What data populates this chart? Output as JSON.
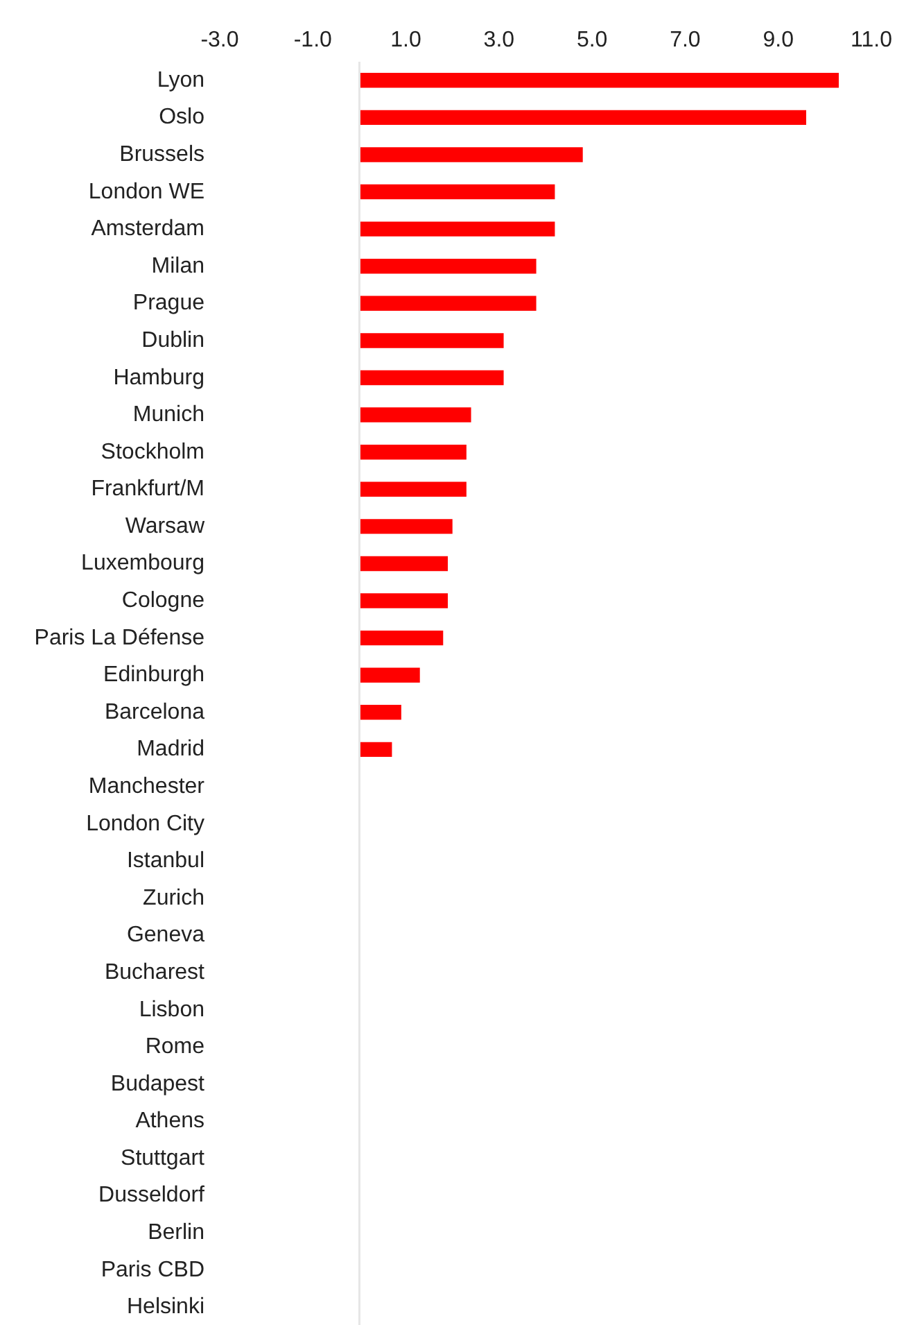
{
  "chart_data": {
    "type": "bar",
    "orientation": "horizontal",
    "categories": [
      "Lyon",
      "Oslo",
      "Brussels",
      "London WE",
      "Amsterdam",
      "Milan",
      "Prague",
      "Dublin",
      "Hamburg",
      "Munich",
      "Stockholm",
      "Frankfurt/M",
      "Warsaw",
      "Luxembourg",
      "Cologne",
      "Paris La Défense",
      "Edinburgh",
      "Barcelona",
      "Madrid",
      "Manchester",
      "London City",
      "Istanbul",
      "Zurich",
      "Geneva",
      "Bucharest",
      "Lisbon",
      "Rome",
      "Budapest",
      "Athens",
      "Stuttgart",
      "Dusseldorf",
      "Berlin",
      "Paris CBD",
      "Helsinki"
    ],
    "values": [
      10.3,
      9.6,
      4.8,
      4.2,
      4.2,
      3.8,
      3.8,
      3.1,
      3.1,
      2.4,
      2.3,
      2.3,
      2.0,
      1.9,
      1.9,
      1.8,
      1.3,
      0.9,
      0.7,
      0,
      0,
      0,
      0,
      0,
      0,
      0,
      0,
      0,
      0,
      0,
      0,
      0,
      0,
      0
    ],
    "color": "#ff0000",
    "xlim": [
      -3,
      11
    ],
    "xticks": [
      {
        "value": -3,
        "label": "-3.0"
      },
      {
        "value": -1,
        "label": "-1.0"
      },
      {
        "value": 1,
        "label": "1.0"
      },
      {
        "value": 3,
        "label": "3.0"
      },
      {
        "value": 5,
        "label": "5.0"
      },
      {
        "value": 7,
        "label": "7.0"
      },
      {
        "value": 9,
        "label": "9.0"
      },
      {
        "value": 11,
        "label": "11.0"
      }
    ],
    "grid": false
  }
}
